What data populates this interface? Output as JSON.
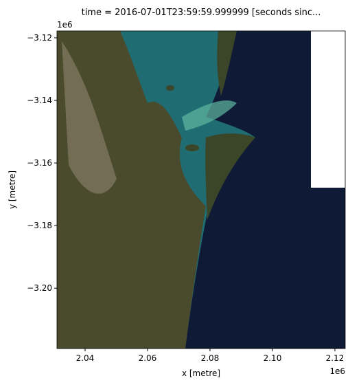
{
  "chart_data": {
    "type": "image",
    "title": "time = 2016-07-01T23:59:59.999999 [seconds sinc...",
    "x_label": "x [metre]",
    "y_label": "y [metre]",
    "x_offset": "1e6",
    "y_offset": "1e6",
    "xlim": [
      2.031,
      2.1233
    ],
    "ylim": [
      -3.2193,
      -3.1178
    ],
    "xticks": [
      2.04,
      2.06,
      2.08,
      2.1,
      2.12
    ],
    "xtick_labels": [
      "2.04",
      "2.06",
      "2.08",
      "2.10",
      "2.12"
    ],
    "yticks": [
      {
        "value": -3.12,
        "label": "−3.12"
      },
      {
        "value": -3.14,
        "label": "−3.14"
      },
      {
        "value": -3.16,
        "label": "−3.16"
      },
      {
        "value": -3.18,
        "label": "−3.18"
      },
      {
        "value": -3.2,
        "label": "−3.20"
      }
    ]
  }
}
